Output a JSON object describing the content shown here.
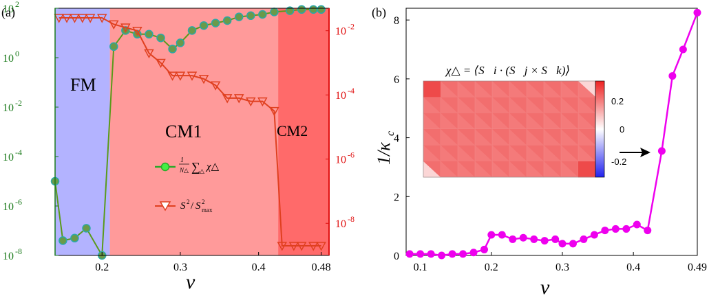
{
  "chart_data": [
    {
      "panel_label": "(a)",
      "type": "line",
      "xlabel": "ν",
      "xlim": [
        0.14,
        0.49
      ],
      "xticks": [
        0.2,
        0.3,
        0.4,
        0.48
      ],
      "xtick_labels": [
        "0.2",
        "0.3",
        "0.4",
        "0.48"
      ],
      "left_axis": {
        "scale": "log",
        "ylim_exp": [
          -8,
          2
        ],
        "tick_exps": [
          -8,
          -6,
          -4,
          -2,
          0,
          2
        ],
        "color": "#1a7a1a"
      },
      "right_axis": {
        "scale": "log",
        "ylim_exp": [
          -9,
          -1.3
        ],
        "tick_exps": [
          -8,
          -6,
          -4,
          -2
        ],
        "color": "#e01010"
      },
      "regions": [
        {
          "label": "FM",
          "x0": 0.14,
          "x1": 0.21,
          "color": "#b3b3ff"
        },
        {
          "label": "CM1",
          "x0": 0.21,
          "x1": 0.425,
          "color": "#ff9a9a"
        },
        {
          "label": "CM2",
          "x0": 0.425,
          "x1": 0.49,
          "color": "#ff6a6a"
        }
      ],
      "series": [
        {
          "name": "chi",
          "legend": "1/N△ Σ△ χ△",
          "axis": "left",
          "color": "#5a9a1a",
          "marker": "circle",
          "x": [
            0.14,
            0.15,
            0.165,
            0.18,
            0.2,
            0.215,
            0.23,
            0.245,
            0.26,
            0.275,
            0.29,
            0.3,
            0.315,
            0.33,
            0.345,
            0.36,
            0.375,
            0.39,
            0.405,
            0.42,
            0.44,
            0.455,
            0.47,
            0.48
          ],
          "exp": [
            -5.0,
            -7.4,
            -7.3,
            -6.9,
            -8.0,
            0.45,
            1.1,
            0.95,
            0.95,
            0.8,
            0.35,
            0.6,
            1.1,
            1.3,
            1.4,
            1.5,
            1.65,
            1.7,
            1.75,
            1.85,
            1.9,
            1.95,
            1.95,
            1.95
          ]
        },
        {
          "name": "S2",
          "legend": "S²/S²max",
          "axis": "right",
          "color": "#e04020",
          "marker": "triangle-down",
          "x": [
            0.145,
            0.155,
            0.165,
            0.175,
            0.185,
            0.2,
            0.215,
            0.23,
            0.245,
            0.26,
            0.275,
            0.29,
            0.3,
            0.315,
            0.33,
            0.345,
            0.36,
            0.375,
            0.39,
            0.405,
            0.42,
            0.43,
            0.445,
            0.455,
            0.47,
            0.48
          ],
          "exp": [
            -1.6,
            -1.6,
            -1.6,
            -1.6,
            -1.6,
            -1.6,
            -1.8,
            -1.9,
            -2.0,
            -2.7,
            -3.0,
            -3.4,
            -3.4,
            -3.4,
            -3.5,
            -3.7,
            -4.1,
            -4.1,
            -4.2,
            -4.2,
            -4.5,
            -8.7,
            -8.7,
            -8.7,
            -8.7,
            -8.7
          ]
        }
      ]
    },
    {
      "panel_label": "(b)",
      "type": "line",
      "xlabel": "ν",
      "ylabel": "1/κc",
      "xlim": [
        0.08,
        0.49
      ],
      "ylim": [
        0,
        8.4
      ],
      "xticks": [
        0.1,
        0.2,
        0.3,
        0.4,
        0.49
      ],
      "xtick_labels": [
        "0.1",
        "0.2",
        "0.3",
        "0.4",
        "0.49"
      ],
      "yticks": [
        0,
        2,
        4,
        6,
        8
      ],
      "color": "#ee00ee",
      "x": [
        0.085,
        0.1,
        0.115,
        0.13,
        0.145,
        0.16,
        0.175,
        0.19,
        0.2,
        0.215,
        0.23,
        0.245,
        0.26,
        0.275,
        0.29,
        0.3,
        0.315,
        0.33,
        0.345,
        0.36,
        0.375,
        0.39,
        0.405,
        0.42,
        0.44,
        0.455,
        0.47,
        0.49
      ],
      "y": [
        0.05,
        0.05,
        0.05,
        0.0,
        0.05,
        0.05,
        0.1,
        0.2,
        0.7,
        0.7,
        0.55,
        0.6,
        0.55,
        0.5,
        0.55,
        0.4,
        0.4,
        0.55,
        0.7,
        0.85,
        0.9,
        0.9,
        1.05,
        0.85,
        3.55,
        6.1,
        7.0,
        8.25
      ]
    }
  ],
  "labels": {
    "panel_a": "(a)",
    "panel_b": "(b)",
    "xlabel_a": "ν",
    "xlabel_b": "ν",
    "ylabel_b": "1/κ",
    "ylabel_b_sub": "c",
    "region_fm": "FM",
    "region_cm1": "CM1",
    "region_cm2": "CM2",
    "inset_formula": "χ△ = ⟨S⃗i · (S⃗j × S⃗k)⟩",
    "inset_ticks": [
      "0.2",
      "0",
      "-0.2"
    ]
  },
  "colors": {
    "fm": "#b3b3ff",
    "cm1": "#ff9a9a",
    "cm2": "#ff6a6a",
    "green_axis": "#1a7a1a",
    "red_axis": "#e01010",
    "chi_line": "#5a9a1a",
    "chi_marker": "#5a9a1a",
    "s2_line": "#e04020",
    "magenta": "#ee00ee"
  }
}
